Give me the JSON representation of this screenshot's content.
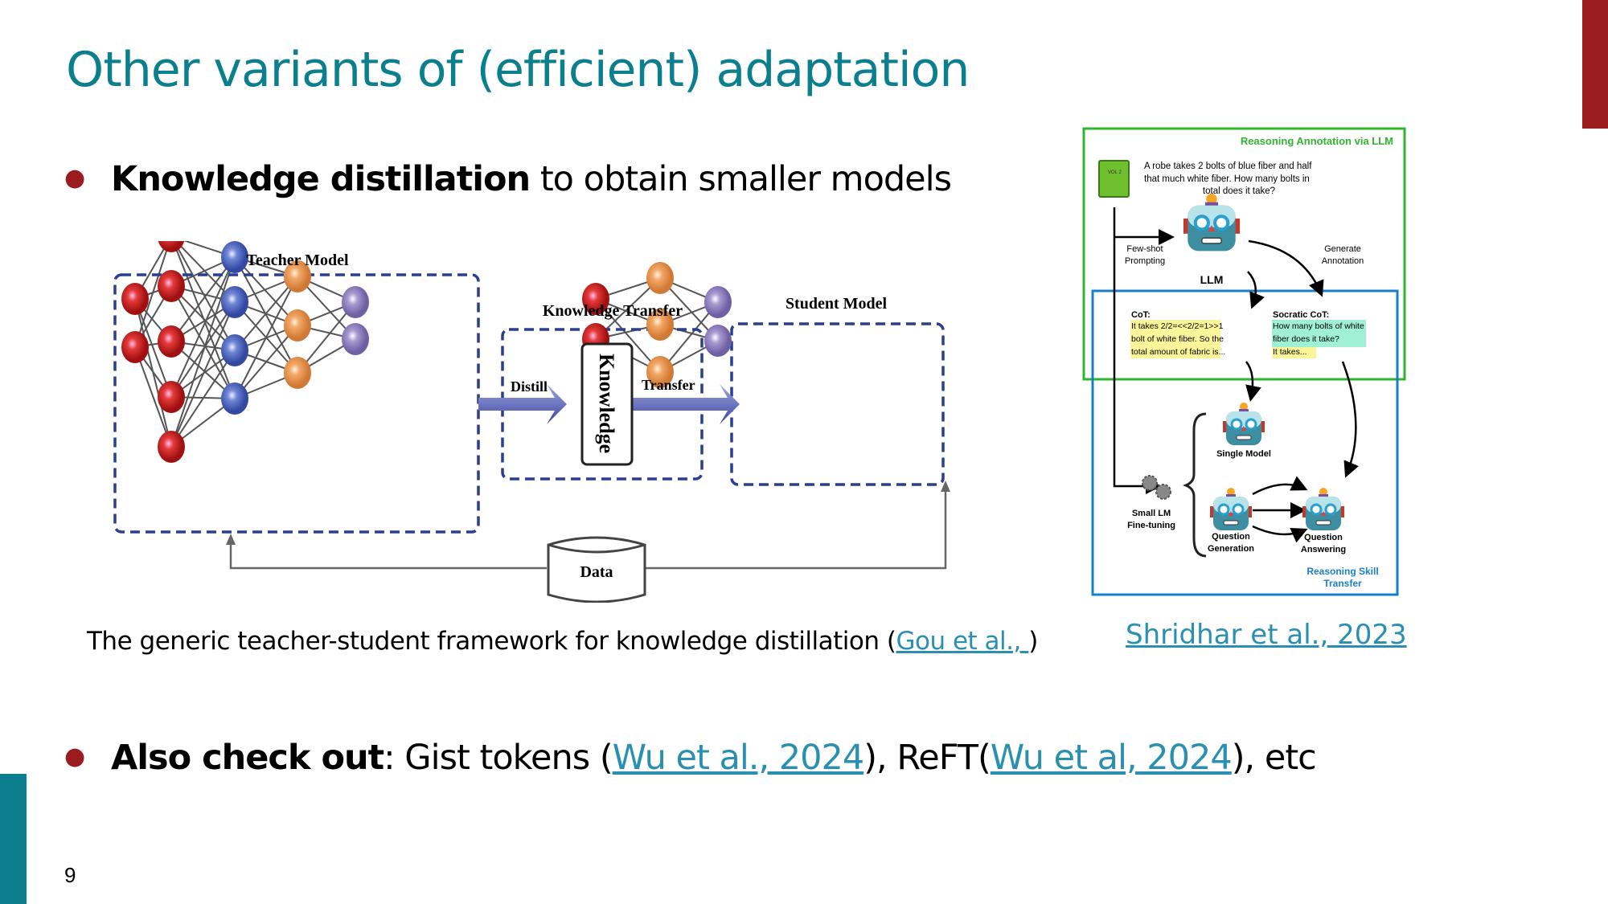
{
  "slide": {
    "title": "Other variants of (efficient) adaptation",
    "page_number": "9",
    "accent_colors": {
      "title": "#0b7f8e",
      "bullet": "#9b1c1f",
      "top_right_bar": "#9b1c1f",
      "bottom_left_bar": "#0b7f8e",
      "link": "#2a8fb0"
    }
  },
  "bullet1": {
    "bold": "Knowledge distillation",
    "rest": " to obtain smaller models"
  },
  "left_figure": {
    "teacher_label": "Teacher Model",
    "transfer_label": "Knowledge Transfer",
    "student_label": "Student Model",
    "distill": "Distill",
    "transfer": "Transfer",
    "knowledge": "Knowledge",
    "data": "Data"
  },
  "caption": {
    "text": "The generic teacher-student framework for knowledge distillation (",
    "link": "Gou et al., ",
    "close": ")"
  },
  "right_figure": {
    "green_title": "Reasoning Annotation via LLM",
    "question": [
      "A robe takes 2 bolts of blue fiber and half",
      "that much white fiber.  How many bolts in",
      "total does it take?"
    ],
    "few_shot": [
      "Few-shot",
      "Prompting"
    ],
    "generate": [
      "Generate",
      "Annotation"
    ],
    "llm": "LLM",
    "cot_title": "CoT:",
    "cot_lines": [
      "It takes 2/2=<<2/2=1>>1",
      "bolt of white fiber. So the",
      "total amount of fabric is..."
    ],
    "socratic_title": "Socratic CoT:",
    "socratic_lines": [
      "How many bolts of white",
      "fiber does it take?",
      "It takes..."
    ],
    "single_model": "Single Model",
    "small_lm": [
      "Small LM",
      "Fine-tuning"
    ],
    "qg": [
      "Question",
      "Generation"
    ],
    "qa": [
      "Question",
      "Answering"
    ],
    "blue_title": [
      "Reasoning Skill",
      "Transfer"
    ],
    "book_label": "VOL 2"
  },
  "right_ref": "Shridhar et al., 2023",
  "bullet2": {
    "bold": "Also check out",
    "t1": ": Gist tokens (",
    "link1": "Wu et al., 2024",
    "t2": "), ReFT(",
    "link2": "Wu et al, 2024",
    "t3": "), etc"
  }
}
